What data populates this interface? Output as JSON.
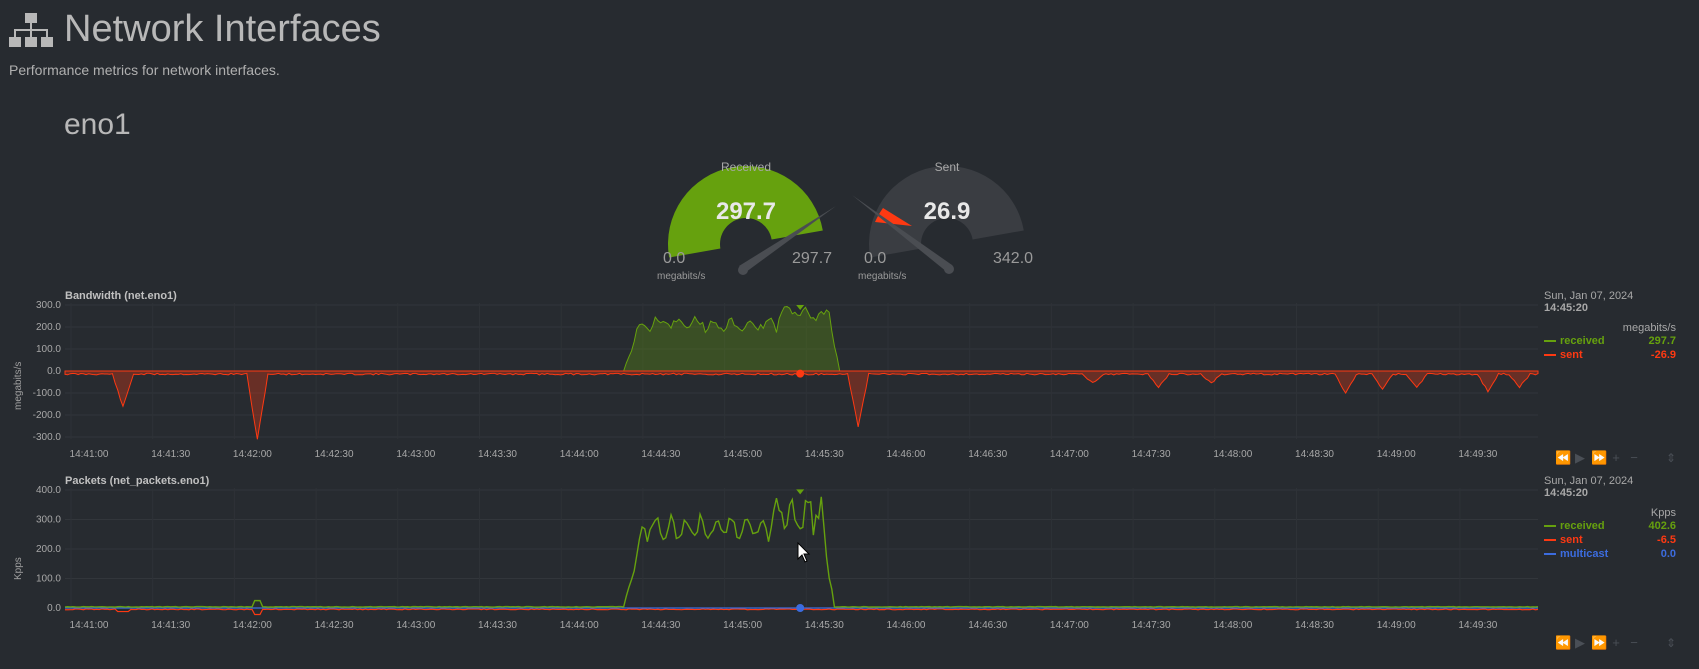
{
  "page": {
    "title": "Network Interfaces",
    "subtitle": "Performance metrics for network interfaces.",
    "icon": "network-icon"
  },
  "interface": {
    "name": "eno1"
  },
  "colors": {
    "received": "#66a10e",
    "sent": "#fe3912",
    "multicast": "#3c6cdf",
    "gauge_bg": "#3a3d42"
  },
  "gauges": [
    {
      "label": "Received",
      "value": "297.7",
      "min": "0.0",
      "max": "297.7",
      "units": "megabits/s",
      "fraction": 1.0
    },
    {
      "label": "Sent",
      "value": "26.9",
      "min": "0.0",
      "max": "342.0",
      "units": "megabits/s",
      "fraction": 0.079
    }
  ],
  "charts": {
    "bandwidth": {
      "title": "Bandwidth (net.eno1)",
      "ylabel": "megabits/s",
      "yticks": [
        "300.0",
        "200.0",
        "100.0",
        "0.0",
        "-100.0",
        "-200.0",
        "-300.0"
      ],
      "legend": {
        "date": "Sun, Jan 07, 2024",
        "time": "14:45:20",
        "units": "megabits/s",
        "items": [
          {
            "name": "received",
            "value": "297.7"
          },
          {
            "name": "sent",
            "value": "-26.9"
          }
        ]
      }
    },
    "packets": {
      "title": "Packets (net_packets.eno1)",
      "ylabel": "Kpps",
      "yticks": [
        "400.0",
        "300.0",
        "200.0",
        "100.0",
        "0.0"
      ],
      "legend": {
        "date": "Sun, Jan 07, 2024",
        "time": "14:45:20",
        "units": "Kpps",
        "items": [
          {
            "name": "received",
            "value": "402.6"
          },
          {
            "name": "sent",
            "value": "-6.5"
          },
          {
            "name": "multicast",
            "value": "0.0"
          }
        ]
      }
    }
  },
  "xticks": [
    "14:41:00",
    "14:41:30",
    "14:42:00",
    "14:42:30",
    "14:43:00",
    "14:43:30",
    "14:44:00",
    "14:44:30",
    "14:45:00",
    "14:45:30",
    "14:46:00",
    "14:46:30",
    "14:47:00",
    "14:47:30",
    "14:48:00",
    "14:48:30",
    "14:49:00",
    "14:49:30"
  ],
  "toolbar_icons": [
    "rewind-icon",
    "play-icon",
    "fast-forward-icon",
    "zoom-in-icon",
    "zoom-out-icon"
  ]
}
